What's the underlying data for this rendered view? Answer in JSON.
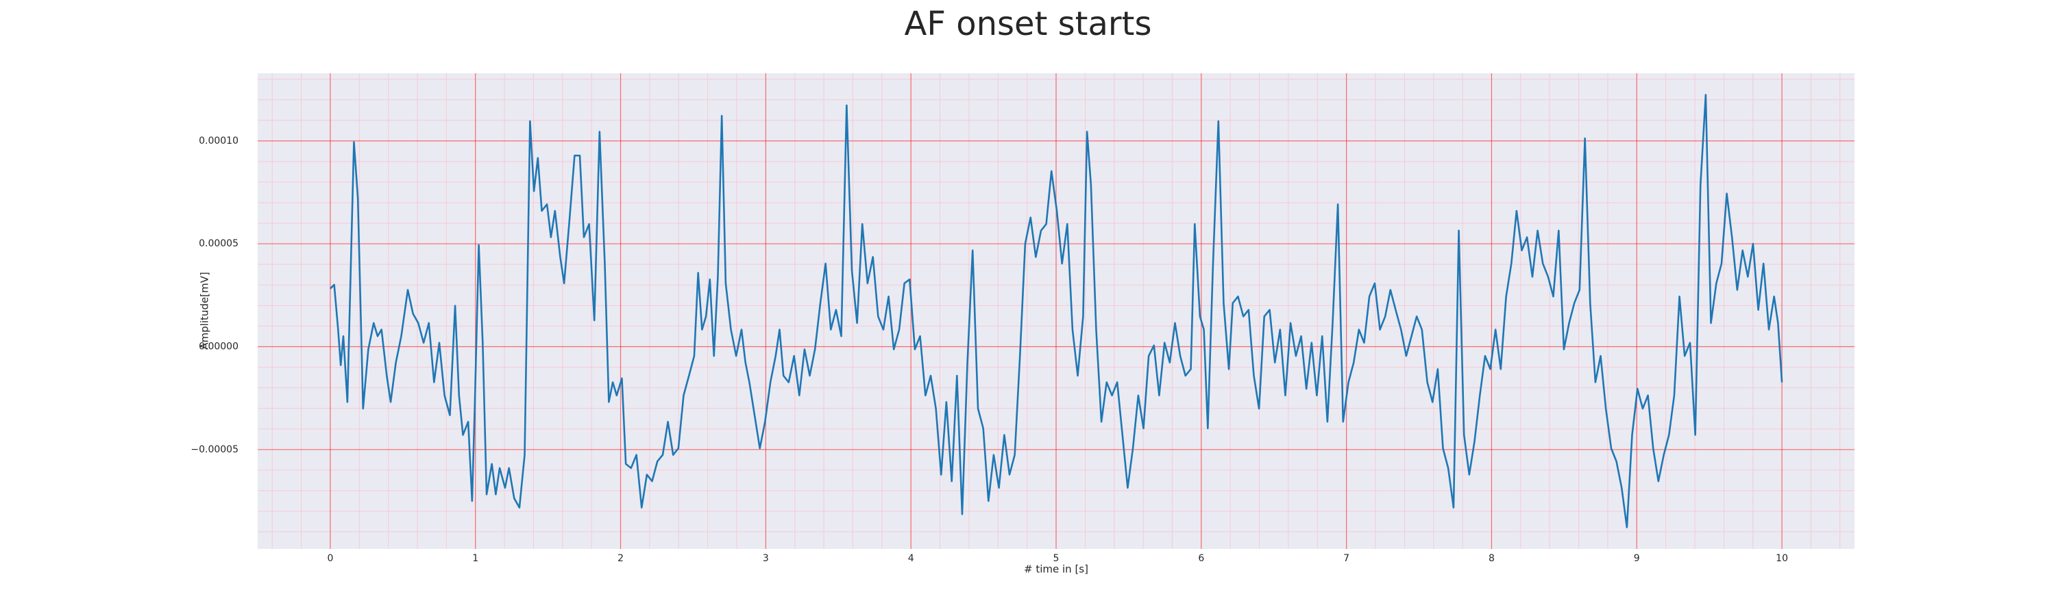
{
  "chart_data": {
    "type": "line",
    "title": "AF onset starts",
    "x_label": "# time in [s]",
    "y_label": "Amplitude[mV]",
    "color": "#1f77b4",
    "grid": true,
    "minor_grid": true,
    "xlim": [
      -0.5,
      10.5
    ],
    "xticks": [
      0,
      1,
      2,
      3,
      4,
      5,
      6,
      7,
      8,
      9,
      10
    ],
    "ylim": [
      -9.83e-05,
      0.0001329
    ],
    "yticks": [
      {
        "value": -5e-05,
        "label": "−0.00005"
      },
      {
        "value": 0,
        "label": "0.00000"
      },
      {
        "value": 5e-05,
        "label": "0.00005"
      },
      {
        "value": 0.0001,
        "label": "0.00010"
      }
    ],
    "x_minor_ticks": [
      -0.4,
      -0.2,
      0.2,
      0.4,
      0.6,
      0.8,
      1.2,
      1.4,
      1.6,
      1.8,
      2.2,
      2.4,
      2.6,
      2.8,
      3.2,
      3.4,
      3.6,
      3.8,
      4.2,
      4.4,
      4.6,
      4.8,
      5.2,
      5.4,
      5.6,
      5.8,
      6.2,
      6.4,
      6.6,
      6.8,
      7.2,
      7.4,
      7.6,
      7.8,
      8.2,
      8.4,
      8.6,
      8.8,
      9.2,
      9.4,
      9.6,
      9.8,
      10.2,
      10.4
    ],
    "y_minor_ticks": [
      -9e-05,
      -8e-05,
      -7e-05,
      -6e-05,
      -4e-05,
      -3e-05,
      -2e-05,
      -1e-05,
      1e-05,
      2e-05,
      3e-05,
      4e-05,
      6e-05,
      7e-05,
      8e-05,
      9e-05,
      0.00011,
      0.00012,
      0.00013
    ],
    "x": [
      0,
      0.027,
      0.054,
      0.072,
      0.09,
      0.118,
      0.163,
      0.19,
      0.226,
      0.262,
      0.299,
      0.326,
      0.353,
      0.389,
      0.416,
      0.452,
      0.489,
      0.534,
      0.57,
      0.606,
      0.643,
      0.679,
      0.715,
      0.751,
      0.787,
      0.824,
      0.86,
      0.887,
      0.914,
      0.95,
      0.977,
      0.995,
      1.023,
      1.05,
      1.077,
      1.113,
      1.14,
      1.167,
      1.204,
      1.231,
      1.267,
      1.303,
      1.339,
      1.376,
      1.403,
      1.43,
      1.457,
      1.493,
      1.52,
      1.548,
      1.584,
      1.611,
      1.647,
      1.683,
      1.719,
      1.747,
      1.783,
      1.819,
      1.855,
      1.891,
      1.919,
      1.946,
      1.973,
      2.009,
      2.036,
      2.072,
      2.109,
      2.145,
      2.181,
      2.217,
      2.253,
      2.29,
      2.326,
      2.362,
      2.398,
      2.434,
      2.471,
      2.507,
      2.534,
      2.561,
      2.588,
      2.615,
      2.643,
      2.67,
      2.697,
      2.724,
      2.76,
      2.796,
      2.833,
      2.86,
      2.887,
      2.923,
      2.959,
      2.995,
      3.032,
      3.068,
      3.095,
      3.122,
      3.158,
      3.195,
      3.231,
      3.267,
      3.303,
      3.339,
      3.376,
      3.412,
      3.448,
      3.484,
      3.52,
      3.557,
      3.593,
      3.629,
      3.665,
      3.701,
      3.738,
      3.774,
      3.81,
      3.846,
      3.882,
      3.919,
      3.955,
      3.991,
      4.027,
      4.063,
      4.1,
      4.136,
      4.172,
      4.208,
      4.244,
      4.281,
      4.317,
      4.353,
      4.389,
      4.425,
      4.462,
      4.498,
      4.534,
      4.57,
      4.606,
      4.643,
      4.679,
      4.715,
      4.751,
      4.787,
      4.824,
      4.86,
      4.896,
      4.932,
      4.968,
      5.005,
      5.041,
      5.077,
      5.113,
      5.149,
      5.186,
      5.213,
      5.24,
      5.276,
      5.312,
      5.348,
      5.385,
      5.421,
      5.457,
      5.493,
      5.529,
      5.566,
      5.602,
      5.638,
      5.674,
      5.71,
      5.747,
      5.783,
      5.819,
      5.855,
      5.891,
      5.928,
      5.955,
      5.991,
      6.018,
      6.045,
      6.081,
      6.118,
      6.154,
      6.19,
      6.217,
      6.253,
      6.29,
      6.326,
      6.362,
      6.398,
      6.434,
      6.471,
      6.507,
      6.543,
      6.579,
      6.615,
      6.652,
      6.688,
      6.724,
      6.76,
      6.796,
      6.833,
      6.869,
      6.905,
      6.941,
      6.977,
      7.014,
      7.05,
      7.086,
      7.122,
      7.158,
      7.195,
      7.231,
      7.267,
      7.303,
      7.339,
      7.376,
      7.412,
      7.448,
      7.484,
      7.52,
      7.557,
      7.593,
      7.629,
      7.665,
      7.701,
      7.738,
      7.774,
      7.81,
      7.846,
      7.882,
      7.919,
      7.955,
      7.991,
      8.027,
      8.063,
      8.1,
      8.136,
      8.172,
      8.208,
      8.244,
      8.281,
      8.317,
      8.353,
      8.389,
      8.425,
      8.462,
      8.498,
      8.534,
      8.57,
      8.606,
      8.643,
      8.679,
      8.715,
      8.751,
      8.787,
      8.824,
      8.86,
      8.896,
      8.932,
      8.968,
      9.005,
      9.041,
      9.077,
      9.113,
      9.149,
      9.186,
      9.222,
      9.258,
      9.294,
      9.33,
      9.367,
      9.403,
      9.439,
      9.475,
      9.511,
      9.548,
      9.584,
      9.62,
      9.656,
      9.692,
      9.729,
      9.765,
      9.801,
      9.837,
      9.873,
      9.91,
      9.946,
      9.973,
      10.0
    ],
    "values": [
      2.82e-05,
      3.01e-05,
      8.3e-06,
      -9e-06,
      5.1e-06,
      -2.69e-05,
      9.94e-05,
      7.24e-05,
      -3.01e-05,
      -1.3e-06,
      1.15e-05,
      5.1e-06,
      8.3e-06,
      -1.41e-05,
      -2.69e-05,
      -7.7e-06,
      5.1e-06,
      2.76e-05,
      1.6e-05,
      1.15e-05,
      1.9e-06,
      1.15e-05,
      -1.73e-05,
      1.9e-06,
      -2.37e-05,
      -3.33e-05,
      1.99e-05,
      -2.37e-05,
      -4.29e-05,
      -3.65e-05,
      -7.5e-05,
      -3.01e-05,
      4.94e-05,
      1.9e-06,
      -7.18e-05,
      -5.7e-05,
      -7.18e-05,
      -5.9e-05,
      -6.86e-05,
      -5.9e-05,
      -7.37e-05,
      -7.82e-05,
      -5.26e-05,
      0.0001096,
      7.56e-05,
      9.17e-05,
      6.6e-05,
      6.92e-05,
      5.32e-05,
      6.6e-05,
      4.36e-05,
      3.08e-05,
      6.09e-05,
      9.29e-05,
      9.29e-05,
      5.32e-05,
      5.96e-05,
      1.28e-05,
      0.0001045,
      4.04e-05,
      -2.69e-05,
      -1.73e-05,
      -2.37e-05,
      -1.54e-05,
      -5.7e-05,
      -5.9e-05,
      -5.26e-05,
      -7.82e-05,
      -6.22e-05,
      -6.54e-05,
      -5.58e-05,
      -5.26e-05,
      -3.65e-05,
      -5.26e-05,
      -4.94e-05,
      -2.37e-05,
      -1.41e-05,
      -4.5e-06,
      3.59e-05,
      8.3e-06,
      1.47e-05,
      3.27e-05,
      -4.5e-06,
      3.4e-05,
      0.0001122,
      3.08e-05,
      8.3e-06,
      -4.5e-06,
      8.3e-06,
      -7.7e-06,
      -1.73e-05,
      -3.33e-05,
      -4.94e-05,
      -3.65e-05,
      -1.73e-05,
      -4.5e-06,
      8.3e-06,
      -1.41e-05,
      -1.73e-05,
      -4.5e-06,
      -2.37e-05,
      -1.3e-06,
      -1.41e-05,
      -1.3e-06,
      2.12e-05,
      4.04e-05,
      8.3e-06,
      1.79e-05,
      5.1e-06,
      0.0001173,
      3.72e-05,
      1.15e-05,
      5.96e-05,
      3.08e-05,
      4.36e-05,
      1.47e-05,
      8.3e-06,
      2.44e-05,
      -1.3e-06,
      8.3e-06,
      3.08e-05,
      3.27e-05,
      -1.3e-06,
      5.1e-06,
      -2.37e-05,
      -1.41e-05,
      -3.01e-05,
      -6.22e-05,
      -2.69e-05,
      -6.54e-05,
      -1.41e-05,
      -8.14e-05,
      -7.7e-06,
      4.68e-05,
      -3.01e-05,
      -3.97e-05,
      -7.5e-05,
      -5.26e-05,
      -6.86e-05,
      -4.29e-05,
      -6.22e-05,
      -5.26e-05,
      -4.5e-06,
      5e-05,
      6.28e-05,
      4.36e-05,
      5.64e-05,
      5.96e-05,
      8.53e-05,
      6.6e-05,
      4.04e-05,
      5.96e-05,
      8.3e-06,
      -1.41e-05,
      1.47e-05,
      0.0001045,
      7.88e-05,
      8.3e-06,
      -3.65e-05,
      -1.73e-05,
      -2.37e-05,
      -1.73e-05,
      -4.29e-05,
      -6.86e-05,
      -4.94e-05,
      -2.37e-05,
      -3.97e-05,
      -4.5e-06,
      6e-07,
      -2.37e-05,
      1.9e-06,
      -7.7e-06,
      1.15e-05,
      -4.5e-06,
      -1.41e-05,
      -1.09e-05,
      5.96e-05,
      1.47e-05,
      8.3e-06,
      -3.97e-05,
      4.04e-05,
      0.0001096,
      2.12e-05,
      -1.09e-05,
      2.12e-05,
      2.44e-05,
      1.47e-05,
      1.79e-05,
      -1.41e-05,
      -3.01e-05,
      1.47e-05,
      1.79e-05,
      -7.7e-06,
      8.3e-06,
      -2.37e-05,
      1.15e-05,
      -4.5e-06,
      5.1e-06,
      -2.05e-05,
      1.9e-06,
      -2.37e-05,
      5.1e-06,
      -3.65e-05,
      1.15e-05,
      6.92e-05,
      -3.65e-05,
      -1.73e-05,
      -7.7e-06,
      8.3e-06,
      1.9e-06,
      2.44e-05,
      3.08e-05,
      8.3e-06,
      1.47e-05,
      2.76e-05,
      1.79e-05,
      8.3e-06,
      -4.5e-06,
      5.1e-06,
      1.47e-05,
      8.3e-06,
      -1.73e-05,
      -2.69e-05,
      -1.09e-05,
      -4.94e-05,
      -5.9e-05,
      -7.82e-05,
      5.64e-05,
      -4.29e-05,
      -6.22e-05,
      -4.62e-05,
      -2.37e-05,
      -4.5e-06,
      -1.09e-05,
      8.3e-06,
      -1.09e-05,
      2.44e-05,
      4.04e-05,
      6.6e-05,
      4.68e-05,
      5.32e-05,
      3.4e-05,
      5.64e-05,
      4.04e-05,
      3.4e-05,
      2.44e-05,
      5.64e-05,
      -1.3e-06,
      1.15e-05,
      2.12e-05,
      2.76e-05,
      0.0001013,
      2.12e-05,
      -1.73e-05,
      -4.5e-06,
      -3.01e-05,
      -4.94e-05,
      -5.58e-05,
      -6.86e-05,
      -8.78e-05,
      -4.29e-05,
      -2.05e-05,
      -3.01e-05,
      -2.37e-05,
      -4.94e-05,
      -6.54e-05,
      -5.26e-05,
      -4.29e-05,
      -2.37e-05,
      2.44e-05,
      -4.5e-06,
      1.9e-06,
      -4.29e-05,
      7.88e-05,
      0.0001224,
      1.15e-05,
      3.08e-05,
      4.04e-05,
      7.44e-05,
      5.32e-05,
      2.76e-05,
      4.68e-05,
      3.4e-05,
      5e-05,
      1.79e-05,
      4.04e-05,
      8.3e-06,
      2.44e-05,
      1.15e-05,
      -1.73e-05
    ]
  }
}
